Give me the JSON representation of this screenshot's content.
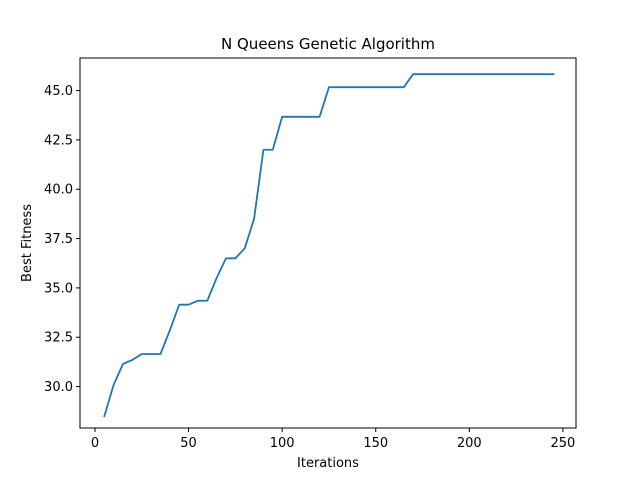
{
  "chart_data": {
    "type": "line",
    "title": "N Queens Genetic Algorithm",
    "xlabel": "Iterations",
    "ylabel": "Best Fitness",
    "xlim": [
      -8,
      257
    ],
    "ylim": [
      27.9,
      46.65
    ],
    "xticks": [
      0,
      50,
      100,
      150,
      200,
      250
    ],
    "yticks": [
      30.0,
      32.5,
      35.0,
      37.5,
      40.0,
      42.5,
      45.0
    ],
    "xtick_labels": [
      "0",
      "50",
      "100",
      "150",
      "200",
      "250"
    ],
    "ytick_labels": [
      "30.0",
      "32.5",
      "35.0",
      "37.5",
      "40.0",
      "42.5",
      "45.0"
    ],
    "grid": false,
    "color": "#1f77b4",
    "series": [
      {
        "x": [
          5,
          10,
          15,
          20,
          25,
          30,
          35,
          40,
          45,
          50,
          55,
          60,
          65,
          70,
          75,
          80,
          85,
          90,
          95,
          100,
          105,
          110,
          115,
          120,
          125,
          130,
          135,
          140,
          145,
          150,
          155,
          160,
          165,
          170,
          175,
          180,
          185,
          190,
          195,
          200,
          205,
          210,
          215,
          220,
          225,
          230,
          235,
          240,
          245
        ],
        "values": [
          28.5,
          30.1,
          31.15,
          31.35,
          31.65,
          31.65,
          31.65,
          32.85,
          34.15,
          34.15,
          34.35,
          34.35,
          35.5,
          36.5,
          36.5,
          37.0,
          38.5,
          42.0,
          42.0,
          43.67,
          43.67,
          43.67,
          43.67,
          43.67,
          45.17,
          45.17,
          45.17,
          45.17,
          45.17,
          45.17,
          45.17,
          45.17,
          45.17,
          45.83,
          45.83,
          45.83,
          45.83,
          45.83,
          45.83,
          45.83,
          45.83,
          45.83,
          45.83,
          45.83,
          45.83,
          45.83,
          45.83,
          45.83,
          45.83
        ]
      }
    ]
  }
}
